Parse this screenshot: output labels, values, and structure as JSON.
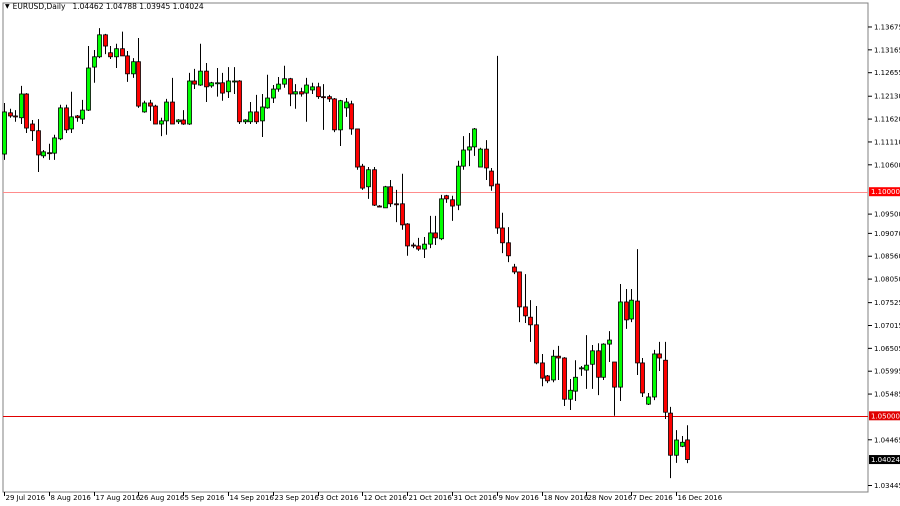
{
  "header": {
    "symbol_label": "EURUSD,Daily",
    "ohlc_readout": "1.04462 1.04788 1.03945 1.04024",
    "menu_icon": "triangle-down-icon"
  },
  "colors": {
    "bull": "#00ff00",
    "bear": "#ff0000",
    "outline": "#000000",
    "level_1_10": "#ff8c8c",
    "level_1_05": "#e00000",
    "bid_tag": "#000000"
  },
  "chart_data": {
    "type": "candlestick",
    "title": "EURUSD,Daily",
    "ylim": [
      1.033,
      1.1421
    ],
    "grid": false,
    "y_ticks": [
      "1.13675",
      "1.13165",
      "1.12655",
      "1.12130",
      "1.11620",
      "1.11110",
      "1.10600",
      "1.09500",
      "1.09070",
      "1.08560",
      "1.08050",
      "1.07525",
      "1.07015",
      "1.06505",
      "1.05995",
      "1.05485",
      "1.04465",
      "1.03445"
    ],
    "x_ticks": [
      "29 Jul 2016",
      "8 Aug 2016",
      "17 Aug 2016",
      "26 Aug 2016",
      "5 Sep 2016",
      "14 Sep 2016",
      "23 Sep 2016",
      "3 Oct 2016",
      "12 Oct 2016",
      "21 Oct 2016",
      "31 Oct 2016",
      "9 Nov 2016",
      "18 Nov 2016",
      "28 Nov 2016",
      "7 Dec 2016",
      "16 Dec 2016"
    ],
    "x_tick_every_bars": 8,
    "horizontal_levels": [
      {
        "price": 1.1,
        "label": "1.10000",
        "color": "#ff8c8c"
      },
      {
        "price": 1.05,
        "label": "1.05000",
        "color": "#e00000"
      }
    ],
    "current_price": {
      "price": 1.04024,
      "label": "1.04024"
    },
    "ohlc_order": [
      "open",
      "high",
      "low",
      "close"
    ],
    "ohlc": [
      [
        1.1084,
        1.1198,
        1.1071,
        1.1178
      ],
      [
        1.1176,
        1.1185,
        1.1165,
        1.1169
      ],
      [
        1.1169,
        1.1182,
        1.1156,
        1.1168
      ],
      [
        1.1165,
        1.1236,
        1.1151,
        1.1218
      ],
      [
        1.1218,
        1.122,
        1.1131,
        1.1142
      ],
      [
        1.1151,
        1.116,
        1.1113,
        1.1136
      ],
      [
        1.1136,
        1.1162,
        1.1044,
        1.1082
      ],
      [
        1.108,
        1.1093,
        1.1075,
        1.1089
      ],
      [
        1.1087,
        1.1107,
        1.1071,
        1.1086
      ],
      [
        1.1086,
        1.1127,
        1.1071,
        1.112
      ],
      [
        1.1118,
        1.1194,
        1.1115,
        1.1187
      ],
      [
        1.1187,
        1.1194,
        1.1131,
        1.1138
      ],
      [
        1.114,
        1.1223,
        1.1131,
        1.1167
      ],
      [
        1.1169,
        1.1171,
        1.1156,
        1.1165
      ],
      [
        1.1162,
        1.1205,
        1.1151,
        1.1182
      ],
      [
        1.1182,
        1.1325,
        1.118,
        1.1276
      ],
      [
        1.1278,
        1.1316,
        1.1243,
        1.1301
      ],
      [
        1.1301,
        1.1365,
        1.1298,
        1.135
      ],
      [
        1.135,
        1.1352,
        1.1307,
        1.1325
      ],
      [
        1.131,
        1.1325,
        1.1296,
        1.1301
      ],
      [
        1.1301,
        1.133,
        1.1276,
        1.1319
      ],
      [
        1.1319,
        1.1357,
        1.1303,
        1.1303
      ],
      [
        1.1303,
        1.1314,
        1.1245,
        1.1263
      ],
      [
        1.1263,
        1.1298,
        1.1254,
        1.129
      ],
      [
        1.129,
        1.1343,
        1.1187,
        1.1191
      ],
      [
        1.1178,
        1.1203,
        1.1176,
        1.1198
      ],
      [
        1.1198,
        1.1205,
        1.1158,
        1.1191
      ],
      [
        1.1191,
        1.1194,
        1.1151,
        1.1151
      ],
      [
        1.1151,
        1.1165,
        1.1124,
        1.1158
      ],
      [
        1.1158,
        1.1207,
        1.1127,
        1.12
      ],
      [
        1.12,
        1.1254,
        1.1151,
        1.1151
      ],
      [
        1.1156,
        1.1162,
        1.1151,
        1.116
      ],
      [
        1.116,
        1.1182,
        1.1149,
        1.1151
      ],
      [
        1.1151,
        1.1265,
        1.1149,
        1.1247
      ],
      [
        1.1247,
        1.1274,
        1.1229,
        1.124
      ],
      [
        1.1238,
        1.133,
        1.1236,
        1.1269
      ],
      [
        1.1269,
        1.1287,
        1.12,
        1.1234
      ],
      [
        1.1236,
        1.1245,
        1.1232,
        1.1243
      ],
      [
        1.1243,
        1.1276,
        1.1212,
        1.1243
      ],
      [
        1.1243,
        1.1265,
        1.1203,
        1.122
      ],
      [
        1.1223,
        1.1278,
        1.1209,
        1.1247
      ],
      [
        1.1247,
        1.1278,
        1.1218,
        1.1247
      ],
      [
        1.1247,
        1.1249,
        1.1151,
        1.1156
      ],
      [
        1.1156,
        1.1162,
        1.1151,
        1.116
      ],
      [
        1.1156,
        1.12,
        1.1151,
        1.1178
      ],
      [
        1.1178,
        1.1216,
        1.1151,
        1.1156
      ],
      [
        1.1158,
        1.1218,
        1.1122,
        1.1189
      ],
      [
        1.1187,
        1.1261,
        1.1185,
        1.1209
      ],
      [
        1.1209,
        1.1238,
        1.1198,
        1.1229
      ],
      [
        1.1229,
        1.1256,
        1.1223,
        1.124
      ],
      [
        1.124,
        1.1281,
        1.1232,
        1.1252
      ],
      [
        1.1252,
        1.1254,
        1.1191,
        1.1218
      ],
      [
        1.1218,
        1.124,
        1.1185,
        1.1223
      ],
      [
        1.1223,
        1.1232,
        1.1212,
        1.1218
      ],
      [
        1.122,
        1.1254,
        1.1156,
        1.1238
      ],
      [
        1.1227,
        1.1243,
        1.1218,
        1.1234
      ],
      [
        1.1234,
        1.1243,
        1.1207,
        1.1212
      ],
      [
        1.1212,
        1.124,
        1.1138,
        1.1211
      ],
      [
        1.1212,
        1.1216,
        1.12,
        1.1207
      ],
      [
        1.1207,
        1.1209,
        1.1133,
        1.1138
      ],
      [
        1.1138,
        1.1205,
        1.1102,
        1.1203
      ],
      [
        1.1187,
        1.1209,
        1.1167,
        1.12
      ],
      [
        1.1196,
        1.1203,
        1.1127,
        1.114
      ],
      [
        1.114,
        1.114,
        1.1049,
        1.1055
      ],
      [
        1.1057,
        1.1062,
        1.1004,
        1.1008
      ],
      [
        1.1011,
        1.1055,
        1.0984,
        1.1049
      ],
      [
        1.1049,
        1.1055,
        1.0968,
        1.097
      ],
      [
        1.0968,
        1.097,
        1.0966,
        1.0967
      ],
      [
        1.0964,
        1.1013,
        1.0964,
        1.1011
      ],
      [
        1.1011,
        1.1026,
        1.0966,
        1.0973
      ],
      [
        1.0973,
        1.1004,
        1.0932,
        1.0972
      ],
      [
        1.0973,
        1.104,
        1.0915,
        1.0926
      ],
      [
        1.0928,
        1.093,
        1.0857,
        1.0879
      ],
      [
        1.0881,
        1.0886,
        1.0874,
        1.0879
      ],
      [
        1.0879,
        1.0897,
        1.0868,
        1.0872
      ],
      [
        1.0872,
        1.0899,
        1.0852,
        1.0883
      ],
      [
        1.0883,
        1.0946,
        1.0874,
        1.0908
      ],
      [
        1.0908,
        1.0946,
        1.0881,
        1.0897
      ],
      [
        1.0895,
        1.0993,
        1.0892,
        1.0984
      ],
      [
        1.0991,
        1.0993,
        1.0975,
        1.0984
      ],
      [
        1.0982,
        1.0991,
        1.0935,
        1.0968
      ],
      [
        1.097,
        1.1069,
        1.0959,
        1.1057
      ],
      [
        1.1057,
        1.1124,
        1.1049,
        1.1093
      ],
      [
        1.1093,
        1.1131,
        1.1057,
        1.11
      ],
      [
        1.11,
        1.1142,
        1.108,
        1.114
      ],
      [
        1.1055,
        1.1098,
        1.1055,
        1.1095
      ],
      [
        1.1095,
        1.1115,
        1.1026,
        1.1053
      ],
      [
        1.1046,
        1.1053,
        1.1002,
        1.1013
      ],
      [
        1.1017,
        1.1303,
        1.0906,
        1.0919
      ],
      [
        1.0919,
        1.0953,
        1.0863,
        1.0886
      ],
      [
        1.0886,
        1.0921,
        1.0843,
        1.0857
      ],
      [
        1.0832,
        1.0839,
        1.0816,
        1.0821
      ],
      [
        1.0821,
        1.0821,
        1.0709,
        1.0743
      ],
      [
        1.0743,
        1.0816,
        1.0707,
        1.0723
      ],
      [
        1.072,
        1.0758,
        1.0665,
        1.0703
      ],
      [
        1.0703,
        1.0745,
        1.0615,
        1.0618
      ],
      [
        1.0618,
        1.0638,
        1.0566,
        1.0584
      ],
      [
        1.0589,
        1.0591,
        1.0573,
        1.0578
      ],
      [
        1.058,
        1.0647,
        1.0575,
        1.0633
      ],
      [
        1.0633,
        1.0656,
        1.058,
        1.0629
      ],
      [
        1.0629,
        1.0631,
        1.0522,
        1.0537
      ],
      [
        1.0537,
        1.0582,
        1.0513,
        1.0557
      ],
      [
        1.0555,
        1.0624,
        1.0533,
        1.0586
      ],
      [
        1.0607,
        1.0611,
        1.0589,
        1.0607
      ],
      [
        1.0602,
        1.068,
        1.056,
        1.0613
      ],
      [
        1.0615,
        1.0658,
        1.056,
        1.0645
      ],
      [
        1.0645,
        1.0662,
        1.0546,
        1.0586
      ],
      [
        1.0586,
        1.0662,
        1.058,
        1.066
      ],
      [
        1.066,
        1.0689,
        1.062,
        1.0669
      ],
      [
        1.062,
        1.062,
        1.05,
        1.0564
      ],
      [
        1.0564,
        1.0794,
        1.0533,
        1.0754
      ],
      [
        1.0754,
        1.0783,
        1.0694,
        1.0714
      ],
      [
        1.0716,
        1.0783,
        1.0709,
        1.0758
      ],
      [
        1.0756,
        1.0872,
        1.0591,
        1.0618
      ],
      [
        1.0618,
        1.0629,
        1.0542,
        1.0551
      ],
      [
        1.0526,
        1.0551,
        1.0524,
        1.0542
      ],
      [
        1.0542,
        1.0647,
        1.0535,
        1.0638
      ],
      [
        1.0638,
        1.0665,
        1.06,
        1.0629
      ],
      [
        1.0624,
        1.0665,
        1.0493,
        1.0508
      ],
      [
        1.0506,
        1.052,
        1.0361,
        1.0412
      ],
      [
        1.0412,
        1.0468,
        1.0395,
        1.0446
      ],
      [
        1.0432,
        1.0455,
        1.043,
        1.0441
      ],
      [
        1.04462,
        1.04788,
        1.03945,
        1.04024
      ]
    ]
  }
}
